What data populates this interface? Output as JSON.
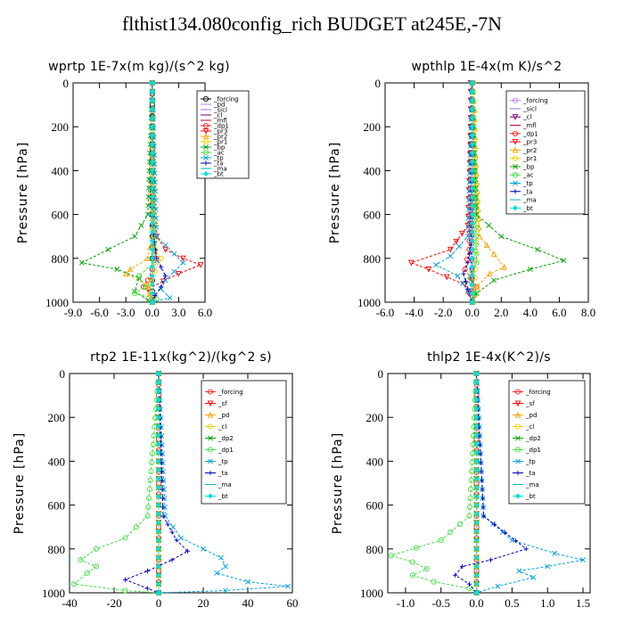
{
  "title": "flthist134.080config_rich  BUDGET at245E,-7N",
  "chart_data": [
    {
      "type": "line",
      "title": "wprtp  1E-7x(m kg)/(s^2 kg)",
      "ylabel": "Pressure [hPa]",
      "xlim": [
        -9,
        6
      ],
      "ylim": [
        1000,
        0
      ],
      "xticks": [
        "-9.0",
        "-6.0",
        "-3.0",
        "0.0",
        "3.0",
        "6.0"
      ],
      "xtick_values": [
        -9,
        -6,
        -3,
        0,
        3,
        6
      ],
      "yticks": [
        "0",
        "200",
        "400",
        "600",
        "800",
        "1000"
      ],
      "ytick_values": [
        0,
        200,
        400,
        600,
        800,
        1000
      ],
      "legend_position": "top-right",
      "series": [
        {
          "name": "_forcing",
          "color": "#000000",
          "marker": "circle",
          "x": [
            0,
            0,
            0,
            0,
            0,
            0,
            0,
            0,
            0,
            0,
            0
          ],
          "y": [
            0,
            100,
            200,
            300,
            400,
            500,
            600,
            700,
            800,
            900,
            1000
          ]
        },
        {
          "name": "_pd",
          "color": "#c080ff",
          "marker": "none",
          "x": [
            0,
            0
          ],
          "y": [
            0,
            1000
          ]
        },
        {
          "name": "_sicl",
          "color": "#a070e0",
          "marker": "none",
          "x": [
            0,
            0
          ],
          "y": [
            0,
            1000
          ]
        },
        {
          "name": "_cl",
          "color": "#800080",
          "marker": "none",
          "x": [
            0,
            0
          ],
          "y": [
            0,
            1000
          ]
        },
        {
          "name": "_mfl",
          "color": "#c00040",
          "marker": "none",
          "x": [
            0,
            0
          ],
          "y": [
            0,
            1000
          ]
        },
        {
          "name": "_dp1",
          "color": "#ff2020",
          "marker": "circle",
          "x": [
            0,
            0,
            0.1,
            0.2,
            0.5,
            -0.5,
            -1.0,
            0.2,
            0
          ],
          "y": [
            0,
            600,
            700,
            760,
            800,
            900,
            930,
            970,
            1000
          ]
        },
        {
          "name": "_pr3",
          "color": "#ff0000",
          "marker": "triangle-down",
          "x": [
            0,
            0.1,
            0.5,
            1.5,
            3.5,
            5.5,
            3.0,
            -0.5,
            0
          ],
          "y": [
            0,
            600,
            700,
            760,
            800,
            830,
            870,
            940,
            1000
          ]
        },
        {
          "name": "_pr2",
          "color": "#ffa000",
          "marker": "triangle-up",
          "x": [
            0,
            0,
            -0.5,
            -2.5,
            -3.0,
            -0.5,
            0
          ],
          "y": [
            0,
            700,
            800,
            850,
            870,
            920,
            1000
          ]
        },
        {
          "name": "_pr1",
          "color": "#f0d000",
          "marker": "circle",
          "x": [
            0,
            0.3,
            1.0,
            0.3,
            -0.5,
            0
          ],
          "y": [
            0,
            760,
            800,
            860,
            930,
            1000
          ]
        },
        {
          "name": "_bp",
          "color": "#00a000",
          "marker": "cross",
          "x": [
            0,
            -0.5,
            -2.0,
            -5.0,
            -8.0,
            -4.0,
            -1.5,
            -2.0,
            -0.5,
            0
          ],
          "y": [
            0,
            600,
            700,
            760,
            820,
            850,
            890,
            950,
            990,
            1000
          ]
        },
        {
          "name": "_ac",
          "color": "#40e040",
          "marker": "circle",
          "x": [
            0,
            0.2,
            -1.5,
            -0.8,
            -2.0,
            0.5,
            0
          ],
          "y": [
            0,
            820,
            880,
            930,
            960,
            985,
            1000
          ]
        },
        {
          "name": "_tp",
          "color": "#00a0e0",
          "marker": "cross",
          "x": [
            0,
            0.5,
            2.5,
            3.5,
            1.5,
            1.0,
            2.0,
            0
          ],
          "y": [
            0,
            700,
            780,
            820,
            900,
            940,
            980,
            1000
          ]
        },
        {
          "name": "_ta",
          "color": "#0000c0",
          "marker": "plus",
          "x": [
            0,
            0,
            0.5,
            1.5,
            1.0,
            0.3,
            0
          ],
          "y": [
            0,
            650,
            800,
            880,
            930,
            970,
            1000
          ]
        },
        {
          "name": "_ma",
          "color": "#00b0b0",
          "marker": "none",
          "x": [
            0,
            0
          ],
          "y": [
            0,
            1000
          ]
        },
        {
          "name": "_bt",
          "color": "#00e0e0",
          "marker": "diamond",
          "x": [
            0,
            0
          ],
          "y": [
            0,
            1000
          ]
        }
      ]
    },
    {
      "type": "line",
      "title": "wpthlp  1E-4x(m K)/s^2",
      "ylabel": "Pressure [hPa]",
      "xlim": [
        -6,
        8
      ],
      "ylim": [
        1000,
        0
      ],
      "xticks": [
        "-6.0",
        "-4.0",
        "-2.0",
        "0.0",
        "2.0",
        "4.0",
        "6.0",
        "8.0"
      ],
      "xtick_values": [
        -6,
        -4,
        -2,
        0,
        2,
        4,
        6,
        8
      ],
      "yticks": [
        "0",
        "200",
        "400",
        "600",
        "800",
        "1000"
      ],
      "ytick_values": [
        0,
        200,
        400,
        600,
        800,
        1000
      ],
      "legend_position": "top-right",
      "series": [
        {
          "name": "_forcing",
          "color": "#c080ff",
          "marker": "circle",
          "x": [
            0,
            0
          ],
          "y": [
            0,
            1000
          ]
        },
        {
          "name": "_sicl",
          "color": "#a070e0",
          "marker": "none",
          "x": [
            0,
            0
          ],
          "y": [
            0,
            1000
          ]
        },
        {
          "name": "_cl",
          "color": "#800080",
          "marker": "triangle-down",
          "x": [
            -0.1,
            -0.1,
            0,
            0
          ],
          "y": [
            0,
            600,
            900,
            1000
          ]
        },
        {
          "name": "_mfl",
          "color": "#c00040",
          "marker": "none",
          "x": [
            0,
            0
          ],
          "y": [
            0,
            1000
          ]
        },
        {
          "name": "_dp1",
          "color": "#ff2020",
          "marker": "circle",
          "x": [
            0,
            -0.2,
            -0.5,
            0.3,
            0
          ],
          "y": [
            0,
            760,
            850,
            930,
            1000
          ]
        },
        {
          "name": "_pr3",
          "color": "#ff0000",
          "marker": "triangle-down",
          "x": [
            0,
            -0.3,
            -1.5,
            -4.2,
            -3.0,
            -0.5,
            0
          ],
          "y": [
            0,
            650,
            760,
            820,
            850,
            920,
            1000
          ]
        },
        {
          "name": "_pr2",
          "color": "#ffa000",
          "marker": "triangle-up",
          "x": [
            0,
            0.5,
            1.5,
            2.2,
            1.2,
            0.3,
            0
          ],
          "y": [
            0,
            700,
            780,
            840,
            870,
            930,
            1000
          ]
        },
        {
          "name": "_pr1",
          "color": "#f0d000",
          "marker": "circle",
          "x": [
            0.1,
            0.2,
            0.3,
            0.2,
            0.1
          ],
          "y": [
            0,
            300,
            600,
            850,
            1000
          ]
        },
        {
          "name": "_bp",
          "color": "#00a000",
          "marker": "cross",
          "x": [
            0,
            0.3,
            2.0,
            4.5,
            6.3,
            4.0,
            1.5,
            0.3,
            0
          ],
          "y": [
            0,
            600,
            700,
            760,
            810,
            850,
            900,
            960,
            1000
          ]
        },
        {
          "name": "_ac",
          "color": "#40e040",
          "marker": "circle",
          "x": [
            0,
            0.3,
            -0.3,
            0.2,
            0
          ],
          "y": [
            0,
            820,
            900,
            960,
            1000
          ]
        },
        {
          "name": "_tp",
          "color": "#00a0e0",
          "marker": "cross",
          "x": [
            0,
            -0.3,
            -1.5,
            -2.5,
            -1.0,
            -0.3,
            0
          ],
          "y": [
            0,
            700,
            790,
            830,
            880,
            950,
            1000
          ]
        },
        {
          "name": "_ta",
          "color": "#0000c0",
          "marker": "plus",
          "x": [
            0,
            0,
            -0.3,
            -0.6,
            -0.3,
            0
          ],
          "y": [
            0,
            700,
            820,
            870,
            940,
            1000
          ]
        },
        {
          "name": "_ma",
          "color": "#00b0b0",
          "marker": "none",
          "x": [
            0,
            0
          ],
          "y": [
            0,
            1000
          ]
        },
        {
          "name": "_bt",
          "color": "#00e0e0",
          "marker": "diamond",
          "x": [
            0,
            0
          ],
          "y": [
            0,
            1000
          ]
        }
      ]
    },
    {
      "type": "line",
      "title": "rtp2  1E-11x(kg^2)/(kg^2 s)",
      "ylabel": "Pressure [hPa]",
      "xlim": [
        -40,
        60
      ],
      "ylim": [
        1000,
        0
      ],
      "xticks": [
        "-40",
        "-20",
        "0",
        "20",
        "40",
        "60"
      ],
      "xtick_values": [
        -40,
        -20,
        0,
        20,
        40,
        60
      ],
      "yticks": [
        "0",
        "200",
        "400",
        "600",
        "800",
        "1000"
      ],
      "ytick_values": [
        0,
        200,
        400,
        600,
        800,
        1000
      ],
      "legend_position": "top-right",
      "series": [
        {
          "name": "_forcing",
          "color": "#ff2020",
          "marker": "circle",
          "x": [
            0,
            0,
            0,
            0,
            0,
            0,
            0,
            0,
            0,
            0,
            0
          ],
          "y": [
            0,
            100,
            200,
            300,
            400,
            500,
            600,
            700,
            800,
            900,
            1000
          ]
        },
        {
          "name": "_sf",
          "color": "#ff0000",
          "marker": "triangle-down",
          "x": [
            0,
            0
          ],
          "y": [
            0,
            1000
          ]
        },
        {
          "name": "_pd",
          "color": "#ffa000",
          "marker": "triangle-up",
          "x": [
            0,
            0
          ],
          "y": [
            0,
            1000
          ]
        },
        {
          "name": "_cl",
          "color": "#f0d000",
          "marker": "circle",
          "x": [
            0,
            0
          ],
          "y": [
            0,
            1000
          ]
        },
        {
          "name": "_dp2",
          "color": "#00a000",
          "marker": "cross",
          "x": [
            0,
            0
          ],
          "y": [
            0,
            1000
          ]
        },
        {
          "name": "_dp1",
          "color": "#40e040",
          "marker": "circle",
          "x": [
            0,
            -5,
            -15,
            -28,
            -35,
            -28,
            -32,
            -38,
            -15,
            0
          ],
          "y": [
            0,
            650,
            750,
            800,
            850,
            880,
            910,
            960,
            990,
            1000
          ]
        },
        {
          "name": "_tp",
          "color": "#00a0e0",
          "marker": "cross",
          "x": [
            0,
            3,
            10,
            20,
            28,
            30,
            26,
            40,
            58,
            30,
            0
          ],
          "y": [
            0,
            650,
            750,
            800,
            840,
            880,
            910,
            950,
            970,
            990,
            1000
          ]
        },
        {
          "name": "_ta",
          "color": "#0000c0",
          "marker": "plus",
          "x": [
            0,
            2,
            8,
            13,
            6,
            -5,
            -15,
            -5,
            0
          ],
          "y": [
            0,
            650,
            760,
            810,
            850,
            900,
            940,
            980,
            1000
          ]
        },
        {
          "name": "_ma",
          "color": "#00b0b0",
          "marker": "none",
          "x": [
            0,
            0
          ],
          "y": [
            0,
            1000
          ]
        },
        {
          "name": "_bt",
          "color": "#00e0e0",
          "marker": "diamond",
          "x": [
            0,
            0
          ],
          "y": [
            0,
            1000
          ]
        }
      ]
    },
    {
      "type": "line",
      "title": "thlp2  1E-4x(K^2)/s",
      "ylabel": "Pressure [hPa]",
      "xlim": [
        -1.25,
        1.6
      ],
      "ylim": [
        1000,
        0
      ],
      "xticks": [
        "-1.0",
        "-0.5",
        "0.0",
        "0.5",
        "1.0",
        "1.5"
      ],
      "xtick_values": [
        -1,
        -0.5,
        0,
        0.5,
        1,
        1.5
      ],
      "yticks": [
        "0",
        "200",
        "400",
        "600",
        "800",
        "1000"
      ],
      "ytick_values": [
        0,
        200,
        400,
        600,
        800,
        1000
      ],
      "legend_position": "top-right",
      "series": [
        {
          "name": "_forcing",
          "color": "#ff2020",
          "marker": "circle",
          "x": [
            0,
            0,
            0,
            0,
            0,
            0,
            0,
            0,
            0,
            0,
            0
          ],
          "y": [
            0,
            100,
            200,
            300,
            400,
            500,
            600,
            700,
            800,
            900,
            1000
          ]
        },
        {
          "name": "_sf",
          "color": "#ff0000",
          "marker": "triangle-down",
          "x": [
            0,
            0
          ],
          "y": [
            0,
            1000
          ]
        },
        {
          "name": "_pd",
          "color": "#ffa000",
          "marker": "triangle-up",
          "x": [
            0,
            0
          ],
          "y": [
            0,
            1000
          ]
        },
        {
          "name": "_cl",
          "color": "#f0d000",
          "marker": "circle",
          "x": [
            0,
            0
          ],
          "y": [
            0,
            1000
          ]
        },
        {
          "name": "_dp2",
          "color": "#00a000",
          "marker": "cross",
          "x": [
            0,
            0
          ],
          "y": [
            0,
            1000
          ]
        },
        {
          "name": "_dp1",
          "color": "#40e040",
          "marker": "circle",
          "x": [
            0,
            -0.1,
            -0.5,
            -1.2,
            -0.9,
            -0.7,
            -0.9,
            -0.6,
            -0.1,
            0
          ],
          "y": [
            0,
            650,
            760,
            830,
            860,
            890,
            920,
            950,
            980,
            1000
          ]
        },
        {
          "name": "_tp",
          "color": "#00a0e0",
          "marker": "cross",
          "x": [
            0,
            0.1,
            0.5,
            1.1,
            1.5,
            1.0,
            0.6,
            0.8,
            0.3,
            0
          ],
          "y": [
            0,
            650,
            760,
            820,
            850,
            880,
            900,
            930,
            970,
            1000
          ]
        },
        {
          "name": "_ta",
          "color": "#0000c0",
          "marker": "plus",
          "x": [
            0,
            0.1,
            0.7,
            0.2,
            -0.2,
            -0.3,
            -0.1,
            0
          ],
          "y": [
            0,
            650,
            800,
            850,
            880,
            920,
            960,
            1000
          ]
        },
        {
          "name": "_ma",
          "color": "#00b0b0",
          "marker": "none",
          "x": [
            0,
            0
          ],
          "y": [
            0,
            1000
          ]
        },
        {
          "name": "_bt",
          "color": "#00e0e0",
          "marker": "diamond",
          "x": [
            0,
            0
          ],
          "y": [
            0,
            1000
          ]
        }
      ]
    }
  ]
}
